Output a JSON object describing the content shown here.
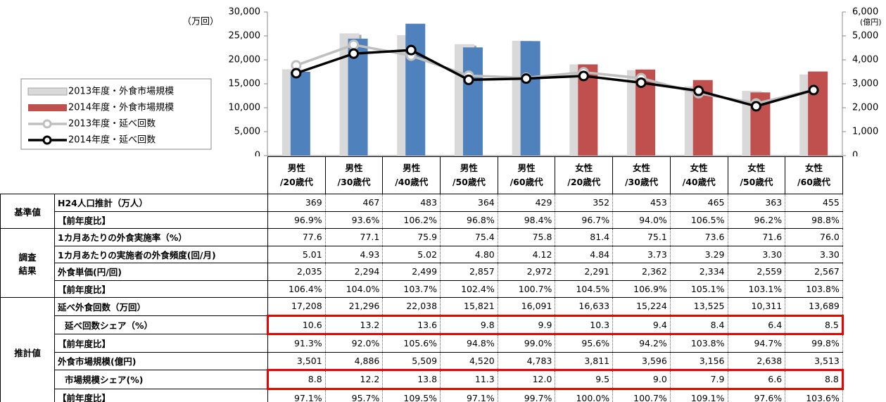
{
  "chart_data": {
    "type": "bar-line",
    "categories": [
      "男性\n/20歳代",
      "男性\n/30歳代",
      "男性\n/40歳代",
      "男性\n/50歳代",
      "男性\n/60歳代",
      "女性\n/20歳代",
      "女性\n/30歳代",
      "女性\n/40歳代",
      "女性\n/50歳代",
      "女性\n/60歳代"
    ],
    "ylabel": "（万回）",
    "y2label": "(億円)",
    "ylim": [
      0,
      30000
    ],
    "yticks": [
      0,
      {
        "value": 5000,
        "label": "5,000"
      },
      {
        "value": 10000,
        "label": "10,000"
      },
      {
        "value": 15000,
        "label": "15,000"
      },
      {
        "value": 20000,
        "label": "20,000"
      },
      {
        "value": 25000,
        "label": "25,000"
      },
      {
        "value": 30000,
        "label": "30,000"
      }
    ],
    "y2lim": [
      0,
      6000
    ],
    "y2ticks": [
      0,
      {
        "value": 1000,
        "label": "1,000"
      },
      {
        "value": 2000,
        "label": "2,000"
      },
      {
        "value": 3000,
        "label": "3,000"
      },
      {
        "value": 4000,
        "label": "4,000"
      },
      {
        "value": 5000,
        "label": "5,000"
      },
      {
        "value": 6000,
        "label": "6,000"
      }
    ],
    "series": [
      {
        "name": "2013年度・外食市場規模",
        "kind": "bar",
        "axis": "y2",
        "color": "#d9d9d9",
        "values": [
          3606,
          5106,
          5031,
          4655,
          4797,
          3811,
          3571,
          2893,
          2703,
          3391
        ]
      },
      {
        "name": "2014年度・外食市場規模",
        "kind": "bar",
        "axis": "y2",
        "color": "#c0504d",
        "colors": [
          "#4f81bd",
          "#4f81bd",
          "#4f81bd",
          "#4f81bd",
          "#4f81bd",
          "#c0504d",
          "#c0504d",
          "#c0504d",
          "#c0504d",
          "#c0504d"
        ],
        "values": [
          3501,
          4886,
          5509,
          4520,
          4783,
          3811,
          3596,
          3156,
          2638,
          3513
        ]
      },
      {
        "name": "2013年度・延べ回数",
        "kind": "line",
        "color": "#bfbfbf",
        "values": [
          18848,
          23148,
          20869,
          16689,
          16254,
          17399,
          16161,
          13030,
          10888,
          13716
        ]
      },
      {
        "name": "2014年度・延べ回数",
        "kind": "line",
        "color": "#000000",
        "values": [
          17208,
          21296,
          22038,
          15821,
          16091,
          16633,
          15224,
          13525,
          10311,
          13689
        ]
      }
    ]
  },
  "table": {
    "groups": [
      {
        "label": "基準値",
        "rows": [
          {
            "label": "H24人口推計（万人）",
            "cells": [
              "369",
              "467",
              "483",
              "364",
              "429",
              "352",
              "453",
              "465",
              "363",
              "455"
            ]
          },
          {
            "label": "【前年度比】",
            "cells": [
              "96.9%",
              "93.6%",
              "106.2%",
              "96.8%",
              "98.4%",
              "96.7%",
              "94.0%",
              "106.5%",
              "96.2%",
              "98.8%"
            ]
          }
        ]
      },
      {
        "label": "調査\n結果",
        "rows": [
          {
            "label": "1カ月あたりの外食実施率（%）",
            "cells": [
              "77.6",
              "77.1",
              "75.9",
              "75.4",
              "75.8",
              "81.4",
              "75.1",
              "73.6",
              "71.6",
              "76.0"
            ]
          },
          {
            "label": "1カ月あたりの実施者の外食頻度(回/月)",
            "cells": [
              "5.01",
              "4.93",
              "5.02",
              "4.80",
              "4.12",
              "4.84",
              "3.73",
              "3.29",
              "3.30",
              "3.30"
            ]
          },
          {
            "label": "外食単価(円/回)",
            "cells": [
              "2,035",
              "2,294",
              "2,499",
              "2,857",
              "2,972",
              "2,291",
              "2,362",
              "2,334",
              "2,559",
              "2,567"
            ]
          },
          {
            "label": "【前年度比】",
            "cells": [
              "106.4%",
              "104.0%",
              "103.7%",
              "102.4%",
              "100.7%",
              "104.5%",
              "106.9%",
              "105.1%",
              "103.1%",
              "103.8%"
            ]
          }
        ]
      },
      {
        "label": "推計値",
        "rows": [
          {
            "label": "延べ外食回数（万回）",
            "cells": [
              "17,208",
              "21,296",
              "22,038",
              "15,821",
              "16,091",
              "16,633",
              "15,224",
              "13,525",
              "10,311",
              "13,689"
            ]
          },
          {
            "label": "延べ回数シェア（%）",
            "highlight": true,
            "cells": [
              "10.6",
              "13.2",
              "13.6",
              "9.8",
              "9.9",
              "10.3",
              "9.4",
              "8.4",
              "6.4",
              "8.5"
            ]
          },
          {
            "label": "【前年度比】",
            "cells": [
              "91.3%",
              "92.0%",
              "105.6%",
              "94.8%",
              "99.0%",
              "95.6%",
              "94.2%",
              "103.8%",
              "94.7%",
              "99.8%"
            ]
          },
          {
            "label": "外食市場規模(億円)",
            "cells": [
              "3,501",
              "4,886",
              "5,509",
              "4,520",
              "4,783",
              "3,811",
              "3,596",
              "3,156",
              "2,638",
              "3,513"
            ]
          },
          {
            "label": "市場規模シェア(%)",
            "highlight": true,
            "cells": [
              "8.8",
              "12.2",
              "13.8",
              "11.3",
              "12.0",
              "9.5",
              "9.0",
              "7.9",
              "6.6",
              "8.8"
            ]
          },
          {
            "label": "【前年度比】",
            "cells": [
              "97.1%",
              "95.7%",
              "109.5%",
              "97.1%",
              "99.7%",
              "100.0%",
              "100.7%",
              "109.1%",
              "97.6%",
              "103.6%"
            ]
          }
        ]
      }
    ]
  }
}
